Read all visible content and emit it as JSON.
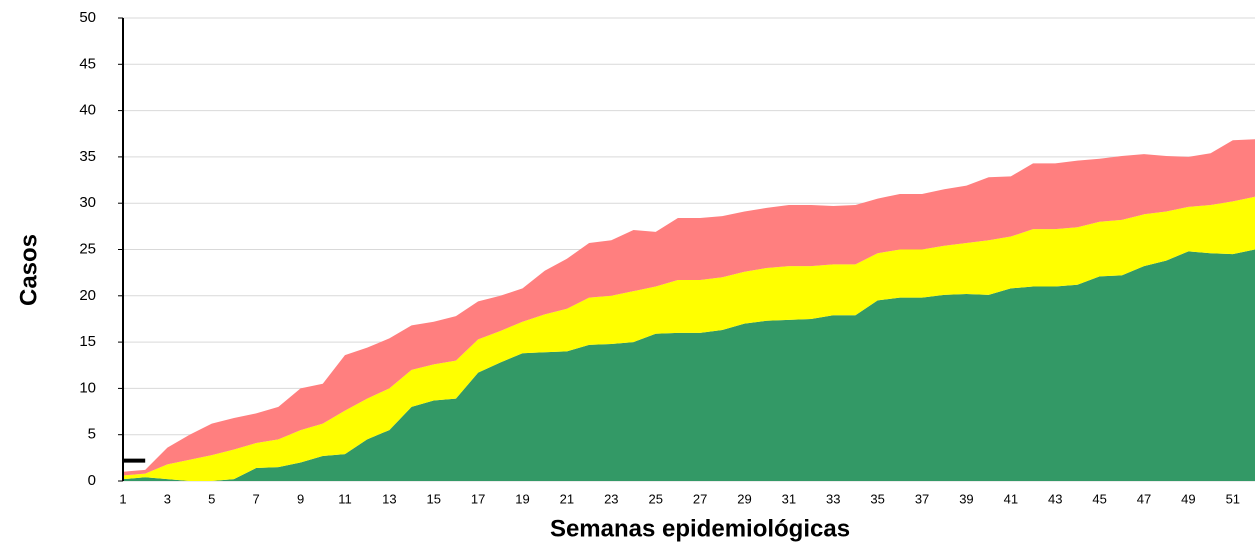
{
  "chart_data": {
    "type": "area",
    "stacked": true,
    "ylabel": "Casos",
    "xlabel": "Semanas epidemiológicas",
    "x": [
      1,
      2,
      3,
      4,
      5,
      6,
      7,
      8,
      9,
      10,
      11,
      12,
      13,
      14,
      15,
      16,
      17,
      18,
      19,
      20,
      21,
      22,
      23,
      24,
      25,
      26,
      27,
      28,
      29,
      30,
      31,
      32,
      33,
      34,
      35,
      36,
      37,
      38,
      39,
      40,
      41,
      42,
      43,
      44,
      45,
      46,
      47,
      48,
      49,
      50,
      51,
      52
    ],
    "xlim": [
      1,
      52
    ],
    "xticks": [
      1,
      3,
      5,
      7,
      9,
      11,
      13,
      15,
      17,
      19,
      21,
      23,
      25,
      27,
      29,
      31,
      33,
      35,
      37,
      39,
      41,
      43,
      45,
      47,
      49,
      51
    ],
    "ylim": [
      0,
      50
    ],
    "yticks": [
      0,
      5,
      10,
      15,
      20,
      25,
      30,
      35,
      40,
      45,
      50
    ],
    "grid": true,
    "series": [
      {
        "color": "#339966",
        "values": [
          0.2,
          0.4,
          0.2,
          0,
          0,
          0.2,
          1.4,
          1.5,
          2,
          2.7,
          2.9,
          4.5,
          5.5,
          8,
          8.7,
          8.9,
          11.7,
          12.8,
          13.8,
          13.9,
          14,
          14.7,
          14.8,
          15,
          15.9,
          16,
          16,
          16.3,
          17,
          17.3,
          17.4,
          17.5,
          17.9,
          17.9,
          19.5,
          19.8,
          19.8,
          20.1,
          20.2,
          20.1,
          20.8,
          21,
          21,
          21.2,
          22.1,
          22.2,
          23.2,
          23.8,
          24.8,
          24.6,
          24.5,
          25
        ]
      },
      {
        "color": "#ffff00",
        "values": [
          0.4,
          0.4,
          1.6,
          2.3,
          2.8,
          3.2,
          2.7,
          3.0,
          3.5,
          3.5,
          4.7,
          4.4,
          4.5,
          4.0,
          3.9,
          4.1,
          3.6,
          3.4,
          3.4,
          4.1,
          4.6,
          5.1,
          5.2,
          5.5,
          5.1,
          5.7,
          5.7,
          5.7,
          5.6,
          5.7,
          5.8,
          5.7,
          5.5,
          5.5,
          5.1,
          5.2,
          5.2,
          5.3,
          5.5,
          5.9,
          5.6,
          6.2,
          6.2,
          6.2,
          5.9,
          6.0,
          5.6,
          5.3,
          4.8,
          5.2,
          5.7,
          5.7
        ]
      },
      {
        "color": "#ff7f7f",
        "values": [
          0.4,
          0.4,
          1.8,
          2.7,
          3.4,
          3.4,
          3.2,
          3.5,
          4.5,
          4.3,
          6.0,
          5.5,
          5.4,
          4.8,
          4.6,
          4.8,
          4.1,
          3.8,
          3.6,
          4.7,
          5.4,
          5.9,
          6.0,
          6.6,
          5.9,
          6.7,
          6.7,
          6.6,
          6.5,
          6.5,
          6.6,
          6.6,
          6.3,
          6.4,
          5.9,
          6.0,
          6.0,
          6.1,
          6.2,
          6.8,
          6.5,
          7.1,
          7.1,
          7.2,
          6.8,
          6.9,
          6.5,
          6.0,
          5.4,
          5.6,
          6.6,
          6.2
        ]
      }
    ],
    "line_series": {
      "color": "#000000",
      "values": [
        2.2,
        2.2,
        null,
        null,
        null,
        null,
        null,
        null,
        null,
        null,
        null,
        null,
        null,
        null,
        null,
        null,
        null,
        null,
        null,
        null,
        null,
        null,
        null,
        null,
        null,
        null,
        null,
        null,
        null,
        null,
        null,
        null,
        null,
        null,
        null,
        null,
        null,
        null,
        null,
        null,
        null,
        null,
        null,
        null,
        null,
        null,
        null,
        null,
        null,
        null,
        null,
        null
      ]
    }
  }
}
